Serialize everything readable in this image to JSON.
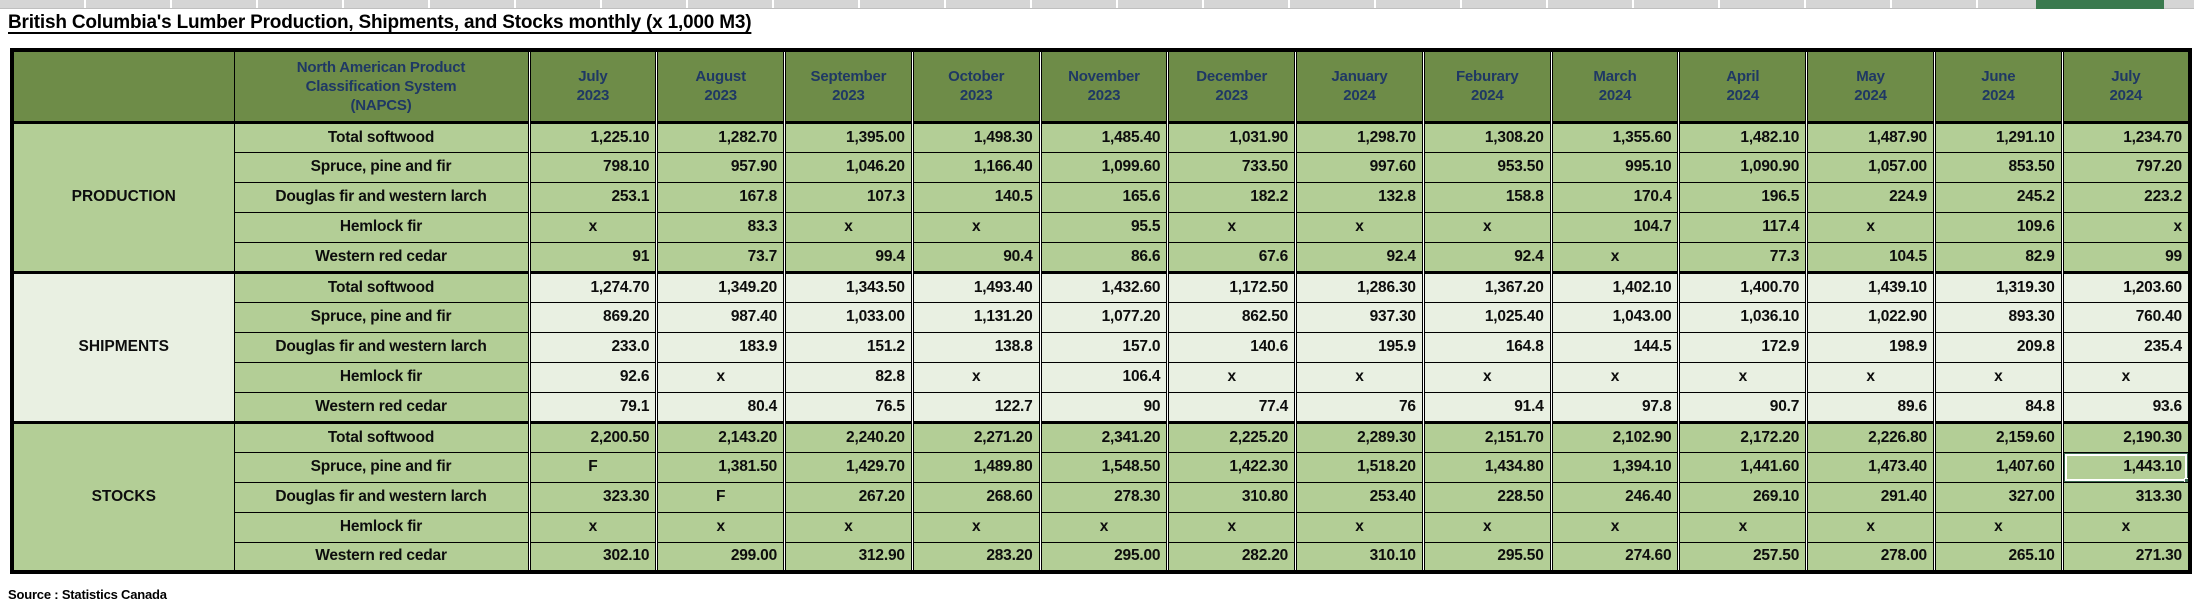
{
  "title": "British Columbia's Lumber Production, Shipments, and Stocks monthly (x 1,000 M3)",
  "source": "Source : Statistics Canada",
  "colors": {
    "header_green": "#6e8c48",
    "medium_green": "#b3ce96",
    "light_green": "#e9f0e2",
    "navy_header_text": "#1f3864",
    "section_label_red": "#ff0000",
    "selection_green": "#3e6b50",
    "strip_gray": "#d5d5d5",
    "strip_selected_green": "#3a7a4e",
    "border_black": "#000000"
  },
  "table": {
    "napcs_header": [
      "North American Product",
      "Classification System",
      "(NAPCS)"
    ],
    "columns": [
      {
        "month": "July",
        "year": "2023"
      },
      {
        "month": "August",
        "year": "2023"
      },
      {
        "month": "September",
        "year": "2023"
      },
      {
        "month": "October",
        "year": "2023"
      },
      {
        "month": "November",
        "year": "2023"
      },
      {
        "month": "December",
        "year": "2023"
      },
      {
        "month": "January",
        "year": "2024"
      },
      {
        "month": "Feburary",
        "year": "2024"
      },
      {
        "month": "March",
        "year": "2024"
      },
      {
        "month": "April",
        "year": "2024"
      },
      {
        "month": "May",
        "year": "2024"
      },
      {
        "month": "June",
        "year": "2024"
      },
      {
        "month": "July",
        "year": "2024"
      }
    ],
    "sections": [
      {
        "label": "PRODUCTION",
        "shade": "medium",
        "rows": [
          {
            "name": "Total softwood",
            "values": [
              "1,225.10",
              "1,282.70",
              "1,395.00",
              "1,498.30",
              "1,485.40",
              "1,031.90",
              "1,298.70",
              "1,308.20",
              "1,355.60",
              "1,482.10",
              "1,487.90",
              "1,291.10",
              "1,234.70"
            ]
          },
          {
            "name": "Spruce, pine and fir",
            "values": [
              "798.10",
              "957.90",
              "1,046.20",
              "1,166.40",
              "1,099.60",
              "733.50",
              "997.60",
              "953.50",
              "995.10",
              "1,090.90",
              "1,057.00",
              "853.50",
              "797.20"
            ]
          },
          {
            "name": "Douglas fir and western larch",
            "values": [
              "253.1",
              "167.8",
              "107.3",
              "140.5",
              "165.6",
              "182.2",
              "132.8",
              "158.8",
              "170.4",
              "196.5",
              "224.9",
              "245.2",
              "223.2"
            ]
          },
          {
            "name": "Hemlock fir",
            "values": [
              "x",
              "83.3",
              "x",
              "x",
              "95.5",
              "x",
              "x",
              "x",
              "104.7",
              "117.4",
              "x",
              "109.6",
              "x"
            ]
          },
          {
            "name": "Western red cedar",
            "values": [
              "91",
              "73.7",
              "99.4",
              "90.4",
              "86.6",
              "67.6",
              "92.4",
              "92.4",
              "x",
              "77.3",
              "104.5",
              "82.9",
              "99"
            ]
          }
        ]
      },
      {
        "label": "SHIPMENTS",
        "shade": "light",
        "rows": [
          {
            "name": "Total softwood",
            "values": [
              "1,274.70",
              "1,349.20",
              "1,343.50",
              "1,493.40",
              "1,432.60",
              "1,172.50",
              "1,286.30",
              "1,367.20",
              "1,402.10",
              "1,400.70",
              "1,439.10",
              "1,319.30",
              "1,203.60"
            ]
          },
          {
            "name": "Spruce, pine and fir",
            "values": [
              "869.20",
              "987.40",
              "1,033.00",
              "1,131.20",
              "1,077.20",
              "862.50",
              "937.30",
              "1,025.40",
              "1,043.00",
              "1,036.10",
              "1,022.90",
              "893.30",
              "760.40"
            ]
          },
          {
            "name": "Douglas fir and western larch",
            "values": [
              "233.0",
              "183.9",
              "151.2",
              "138.8",
              "157.0",
              "140.6",
              "195.9",
              "164.8",
              "144.5",
              "172.9",
              "198.9",
              "209.8",
              "235.4"
            ]
          },
          {
            "name": "Hemlock fir",
            "values": [
              "92.6",
              "x",
              "82.8",
              "x",
              "106.4",
              "x",
              "x",
              "x",
              "x",
              "x",
              "x",
              "x",
              "x"
            ]
          },
          {
            "name": "Western red cedar",
            "values": [
              "79.1",
              "80.4",
              "76.5",
              "122.7",
              "90",
              "77.4",
              "76",
              "91.4",
              "97.8",
              "90.7",
              "89.6",
              "84.8",
              "93.6"
            ]
          }
        ]
      },
      {
        "label": "STOCKS",
        "shade": "medium",
        "rows": [
          {
            "name": "Total softwood",
            "values": [
              "2,200.50",
              "2,143.20",
              "2,240.20",
              "2,271.20",
              "2,341.20",
              "2,225.20",
              "2,289.30",
              "2,151.70",
              "2,102.90",
              "2,172.20",
              "2,226.80",
              "2,159.60",
              "2,190.30"
            ]
          },
          {
            "name": "Spruce, pine and fir",
            "values": [
              "F",
              "1,381.50",
              "1,429.70",
              "1,489.80",
              "1,548.50",
              "1,422.30",
              "1,518.20",
              "1,434.80",
              "1,394.10",
              "1,441.60",
              "1,473.40",
              "1,407.60",
              "1,443.10"
            ]
          },
          {
            "name": "Douglas fir and western larch",
            "values": [
              "323.30",
              "F",
              "267.20",
              "268.60",
              "278.30",
              "310.80",
              "253.40",
              "228.50",
              "246.40",
              "269.10",
              "291.40",
              "327.00",
              "313.30"
            ]
          },
          {
            "name": "Hemlock fir",
            "values": [
              "x",
              "x",
              "x",
              "x",
              "x",
              "x",
              "x",
              "x",
              "x",
              "x",
              "x",
              "x",
              "x"
            ]
          },
          {
            "name": "Western red cedar",
            "values": [
              "302.10",
              "299.00",
              "312.90",
              "283.20",
              "295.00",
              "282.20",
              "310.10",
              "295.50",
              "274.60",
              "257.50",
              "278.00",
              "265.10",
              "271.30"
            ]
          }
        ]
      }
    ],
    "selected_cell": {
      "section_index": 2,
      "row_index": 1,
      "col_index": 12,
      "value": "1,443.10"
    },
    "alignment_exceptions": [
      {
        "section_index": 0,
        "row_index": 3,
        "col_index": 12,
        "align": "right"
      }
    ]
  }
}
